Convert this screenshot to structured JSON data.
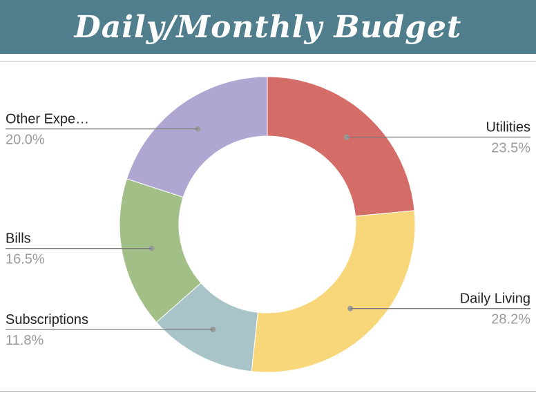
{
  "header": {
    "title": "Daily/Monthly Budget",
    "color": "#507e8c"
  },
  "chart_data": {
    "type": "pie",
    "style": "donut",
    "start_angle_deg": 0,
    "direction": "clockwise",
    "legend": "none",
    "slices": [
      {
        "label": "Utilities",
        "display_label": "Utilities",
        "value": 23.5,
        "pct_label": "23.5%",
        "color": "#d46c67"
      },
      {
        "label": "Daily Living",
        "display_label": "Daily Living",
        "value": 28.2,
        "pct_label": "28.2%",
        "color": "#f8d77a"
      },
      {
        "label": "Subscriptions",
        "display_label": "Subscriptions",
        "value": 11.8,
        "pct_label": "11.8%",
        "color": "#a8c4c9"
      },
      {
        "label": "Bills",
        "display_label": "Bills",
        "value": 16.5,
        "pct_label": "16.5%",
        "color": "#a1bf86"
      },
      {
        "label": "Other Expenses",
        "display_label": "Other Expe…",
        "value": 20.0,
        "pct_label": "20.0%",
        "color": "#b0a6d2"
      }
    ]
  }
}
